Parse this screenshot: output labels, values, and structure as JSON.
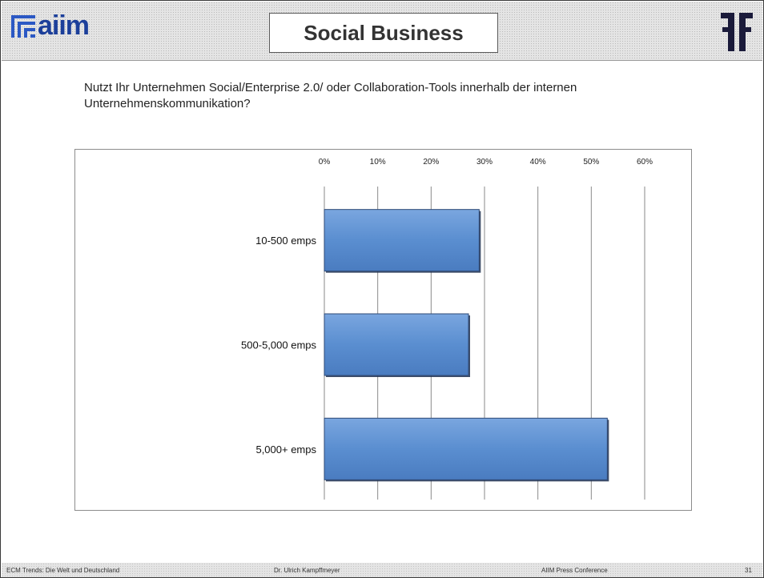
{
  "header": {
    "title": "Social Business",
    "logo_left_text": "aiim",
    "logo_left_icon": "aiim-logo-icon",
    "logo_right_icon": "pk-logo-icon"
  },
  "question": "Nutzt Ihr Unternehmen Social/Enterprise 2.0/ oder Collaboration-Tools innerhalb der internen Unternehmenskommunikation?",
  "footer": {
    "left": "ECM Trends: Die Welt und Deutschland",
    "center": "Dr. Ulrich Kampffmeyer",
    "right": "AIIM Press Conference",
    "page_number": "31"
  },
  "chart_data": {
    "type": "bar",
    "orientation": "horizontal",
    "categories": [
      "10-500 emps",
      "500-5,000 emps",
      "5,000+ emps"
    ],
    "values": [
      29,
      27,
      53
    ],
    "xlim": [
      0,
      60
    ],
    "ticks": [
      "0%",
      "10%",
      "20%",
      "30%",
      "40%",
      "50%",
      "60%"
    ],
    "tick_values": [
      0,
      10,
      20,
      30,
      40,
      50,
      60
    ],
    "axis_position": "top",
    "grid": true,
    "legend": "none",
    "bar_color": "#5a8ed0",
    "bar_edge_color": "#2f4a76",
    "title": "",
    "xlabel": "",
    "ylabel": ""
  }
}
